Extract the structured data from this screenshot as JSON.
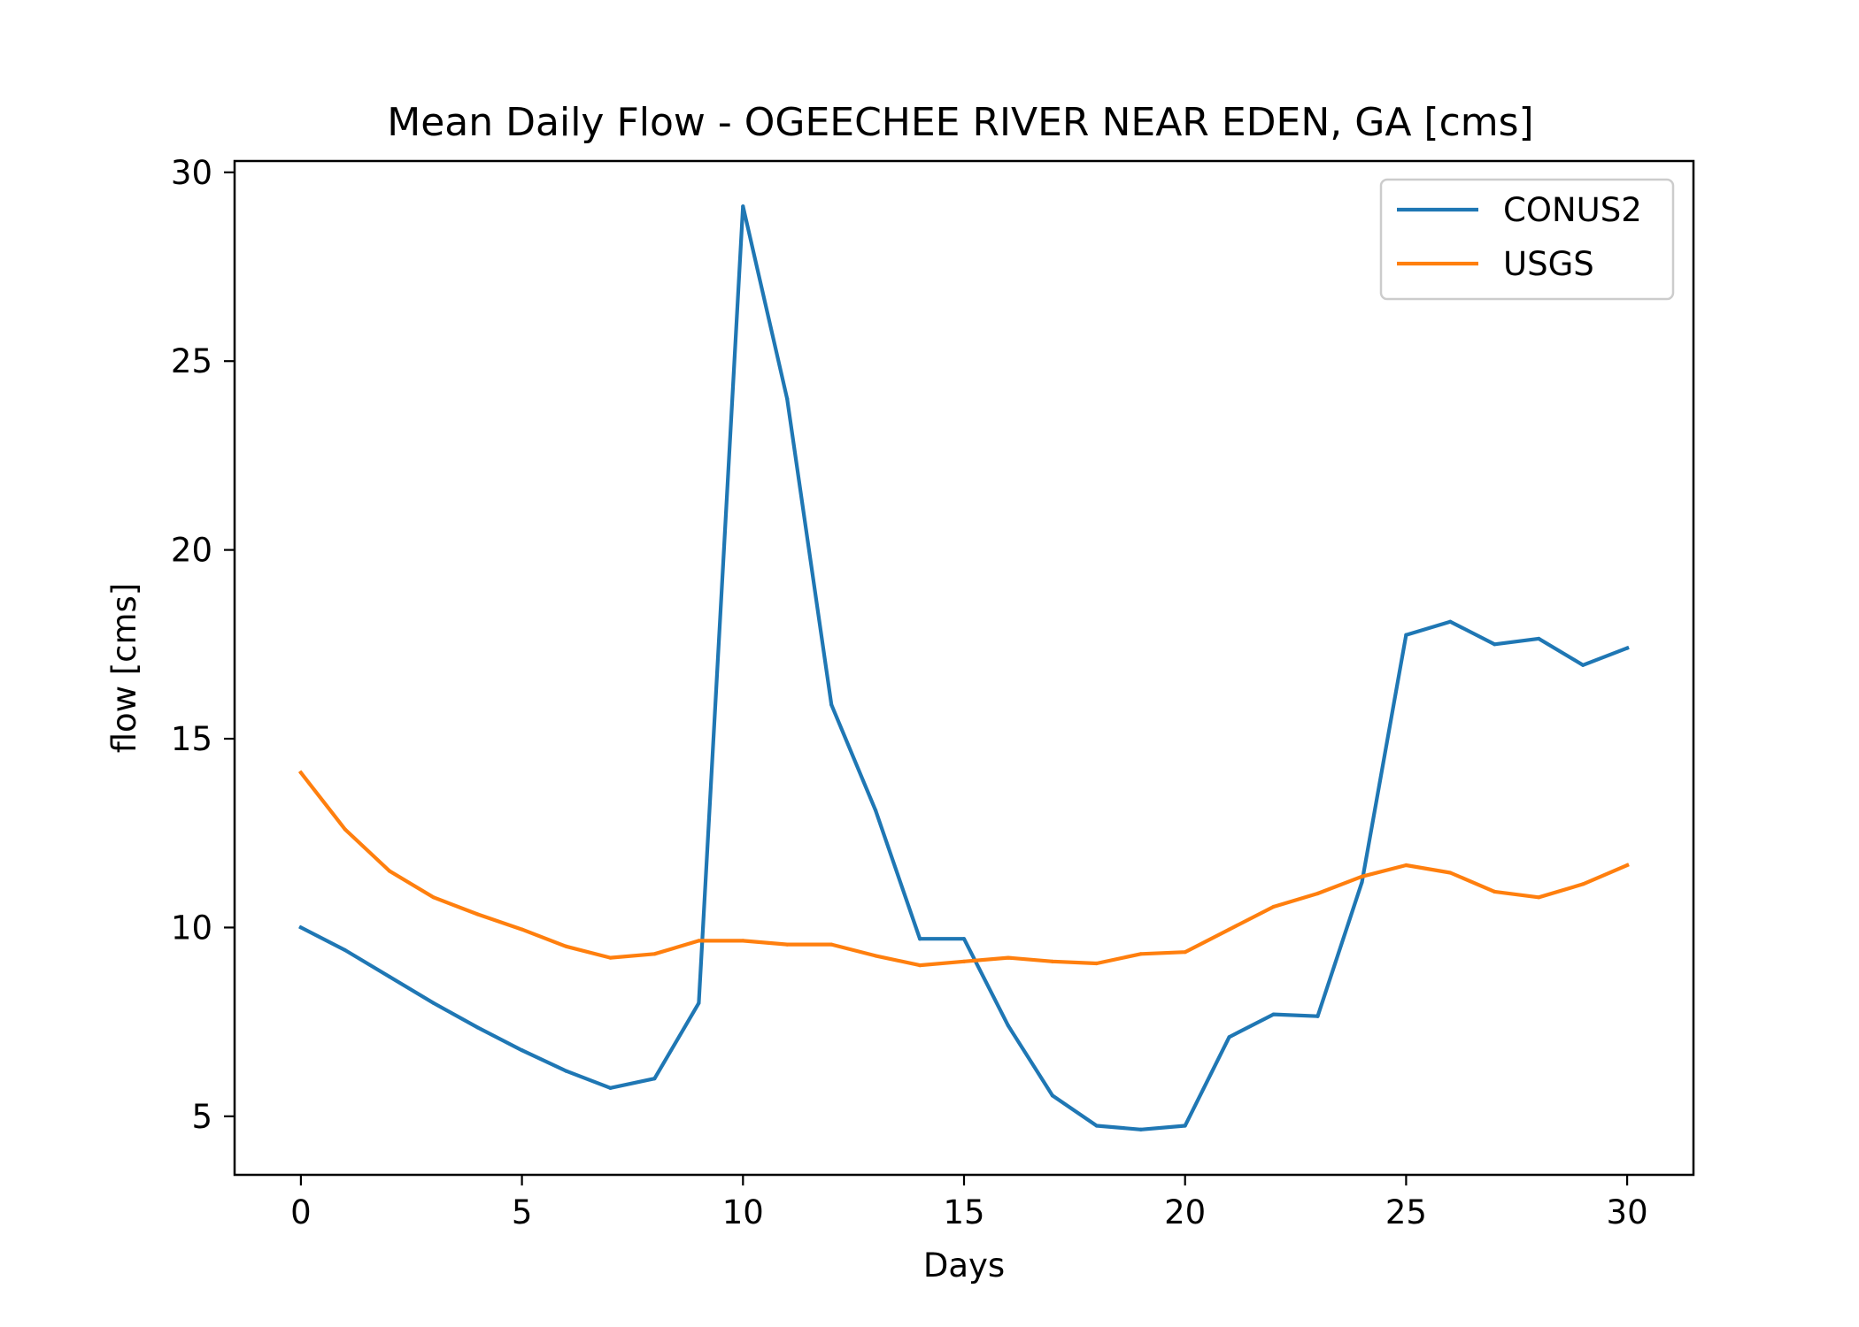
{
  "chart_data": {
    "type": "line",
    "title": "Mean Daily Flow - OGEECHEE RIVER NEAR EDEN, GA [cms]",
    "xlabel": "Days",
    "ylabel": "flow [cms]",
    "xlim": [
      -1.5,
      31.5
    ],
    "ylim": [
      3.45,
      30.3
    ],
    "xticks": [
      0,
      5,
      10,
      15,
      20,
      25,
      30
    ],
    "yticks": [
      5,
      10,
      15,
      20,
      25,
      30
    ],
    "grid": false,
    "legend_position": "top-right",
    "x": [
      0,
      1,
      2,
      3,
      4,
      5,
      6,
      7,
      8,
      9,
      10,
      11,
      12,
      13,
      14,
      15,
      16,
      17,
      18,
      19,
      20,
      21,
      22,
      23,
      24,
      25,
      26,
      27,
      28,
      29,
      30
    ],
    "series": [
      {
        "name": "CONUS2",
        "color": "#1f77b4",
        "values": [
          10.0,
          9.4,
          8.7,
          8.0,
          7.35,
          6.75,
          6.2,
          5.75,
          6.0,
          8.0,
          29.1,
          24.0,
          15.9,
          13.1,
          9.7,
          9.7,
          7.4,
          5.55,
          4.75,
          4.65,
          4.75,
          7.1,
          7.7,
          7.65,
          11.2,
          17.75,
          18.1,
          17.5,
          17.65,
          16.95,
          17.4
        ]
      },
      {
        "name": "USGS",
        "color": "#ff7f0e",
        "values": [
          14.1,
          12.6,
          11.5,
          10.8,
          10.35,
          9.95,
          9.5,
          9.2,
          9.3,
          9.65,
          9.65,
          9.55,
          9.55,
          9.25,
          9.0,
          9.1,
          9.2,
          9.1,
          9.05,
          9.3,
          9.35,
          9.95,
          10.55,
          10.9,
          11.35,
          11.65,
          11.45,
          10.95,
          10.8,
          11.15,
          11.65
        ]
      }
    ]
  }
}
